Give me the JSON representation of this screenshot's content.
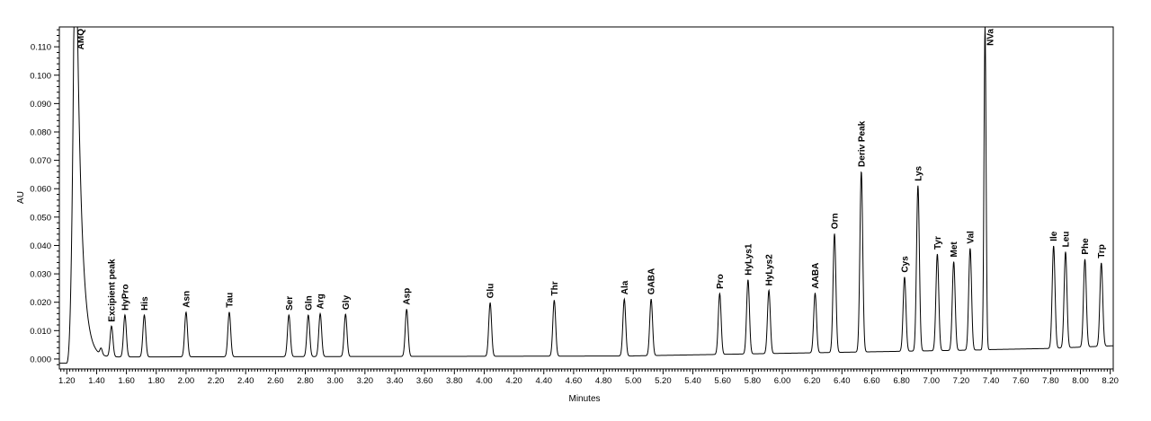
{
  "chart_data": {
    "type": "line",
    "xlabel": "Minutes",
    "ylabel": "AU",
    "xlim": [
      1.15,
      8.22
    ],
    "ylim": [
      -0.0035,
      0.117
    ],
    "x_ticks": [
      "1.20",
      "1.40",
      "1.60",
      "1.80",
      "2.00",
      "2.20",
      "2.40",
      "2.60",
      "2.80",
      "3.00",
      "3.20",
      "3.40",
      "3.60",
      "3.80",
      "4.00",
      "4.20",
      "4.40",
      "4.60",
      "4.80",
      "5.00",
      "5.20",
      "5.40",
      "5.60",
      "5.80",
      "6.00",
      "6.20",
      "6.40",
      "6.60",
      "6.80",
      "7.00",
      "7.20",
      "7.40",
      "7.60",
      "7.80",
      "8.00",
      "8.20"
    ],
    "y_ticks": [
      "0.000",
      "0.010",
      "0.020",
      "0.030",
      "0.040",
      "0.050",
      "0.060",
      "0.070",
      "0.080",
      "0.090",
      "0.100",
      "0.110"
    ],
    "grid": false,
    "legend": "none",
    "line_color": "#000000",
    "peaks": [
      {
        "label": "AMQ",
        "rt": 1.26,
        "height": 0.117
      },
      {
        "label": "Excipient peak",
        "rt": 1.5,
        "height": 0.0115
      },
      {
        "label": "HyPro",
        "rt": 1.59,
        "height": 0.0155
      },
      {
        "label": "His",
        "rt": 1.72,
        "height": 0.0155
      },
      {
        "label": "Asn",
        "rt": 2.0,
        "height": 0.0165
      },
      {
        "label": "Tau",
        "rt": 2.29,
        "height": 0.0165
      },
      {
        "label": "Ser",
        "rt": 2.69,
        "height": 0.0155
      },
      {
        "label": "Gln",
        "rt": 2.82,
        "height": 0.0155
      },
      {
        "label": "Arg",
        "rt": 2.9,
        "height": 0.016
      },
      {
        "label": "Gly",
        "rt": 3.07,
        "height": 0.0158
      },
      {
        "label": "Asp",
        "rt": 3.48,
        "height": 0.0175
      },
      {
        "label": "Glu",
        "rt": 4.04,
        "height": 0.0198
      },
      {
        "label": "Thr",
        "rt": 4.47,
        "height": 0.0207
      },
      {
        "label": "Ala",
        "rt": 4.94,
        "height": 0.0211
      },
      {
        "label": "GABA",
        "rt": 5.12,
        "height": 0.0211
      },
      {
        "label": "Pro",
        "rt": 5.58,
        "height": 0.0231
      },
      {
        "label": "HyLys1",
        "rt": 5.77,
        "height": 0.0279
      },
      {
        "label": "HyLys2",
        "rt": 5.91,
        "height": 0.0242
      },
      {
        "label": "AABA",
        "rt": 6.22,
        "height": 0.0232
      },
      {
        "label": "Orn",
        "rt": 6.35,
        "height": 0.0442
      },
      {
        "label": "Deriv Peak",
        "rt": 6.53,
        "height": 0.0661
      },
      {
        "label": "Cys",
        "rt": 6.82,
        "height": 0.0289
      },
      {
        "label": "Lys",
        "rt": 6.91,
        "height": 0.0611
      },
      {
        "label": "Tyr",
        "rt": 7.04,
        "height": 0.037
      },
      {
        "label": "Met",
        "rt": 7.15,
        "height": 0.0343
      },
      {
        "label": "Val",
        "rt": 7.26,
        "height": 0.039
      },
      {
        "label": "NVa",
        "rt": 7.36,
        "height": 0.117
      },
      {
        "label": "Ile",
        "rt": 7.82,
        "height": 0.0399
      },
      {
        "label": "Leu",
        "rt": 7.9,
        "height": 0.0378
      },
      {
        "label": "Phe",
        "rt": 8.03,
        "height": 0.0352
      },
      {
        "label": "Trp",
        "rt": 8.14,
        "height": 0.0339
      }
    ]
  }
}
